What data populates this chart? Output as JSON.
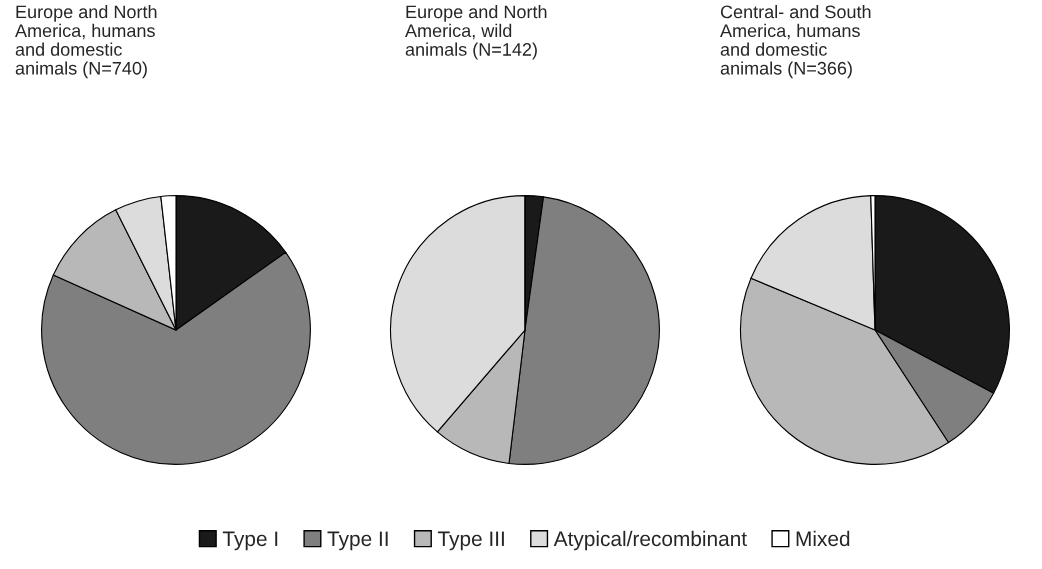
{
  "chart_data": [
    {
      "type": "pie",
      "title": "Europe and North\nAmerica, humans\nand domestic\nanimals (N=740)",
      "categories": [
        "Type I",
        "Type II",
        "Type III",
        "Atypical/recombinant",
        "Mixed"
      ],
      "values": [
        15.2,
        66.5,
        10.9,
        5.6,
        1.8
      ],
      "colors": [
        "#1a1a1a",
        "#7f7f7f",
        "#b8b8b8",
        "#dcdcdc",
        "#ffffff"
      ],
      "legend": "bottom"
    },
    {
      "type": "pie",
      "title": "Europe and North\nAmerica, wild\nanimals (N=142)",
      "values": [
        2.2,
        49.7,
        9.4,
        38.7,
        0
      ],
      "colors": [
        "#1a1a1a",
        "#7f7f7f",
        "#b8b8b8",
        "#dcdcdc",
        "#ffffff"
      ]
    },
    {
      "type": "pie",
      "title": "Central- and South\nAmerica, humans\nand domestic\nanimals (N=366)",
      "values": [
        32.8,
        8.0,
        40.5,
        18.2,
        0.5
      ],
      "colors": [
        "#1a1a1a",
        "#7f7f7f",
        "#b8b8b8",
        "#dcdcdc",
        "#ffffff"
      ]
    }
  ]
}
